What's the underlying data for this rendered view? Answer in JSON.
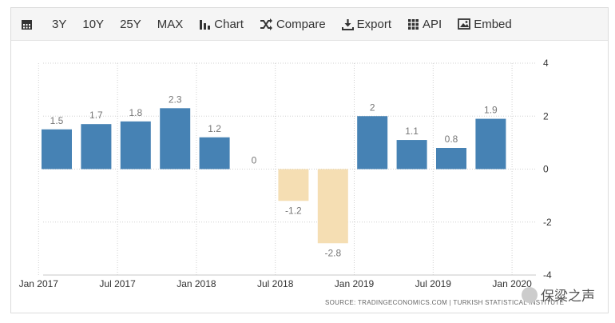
{
  "toolbar": {
    "items": [
      {
        "label": "",
        "icon": "calendar-icon"
      },
      {
        "label": "3Y"
      },
      {
        "label": "10Y"
      },
      {
        "label": "25Y"
      },
      {
        "label": "MAX"
      },
      {
        "label": "Chart",
        "icon": "bar-chart-icon"
      },
      {
        "label": "Compare",
        "icon": "shuffle-icon"
      },
      {
        "label": "Export",
        "icon": "download-icon"
      },
      {
        "label": "API",
        "icon": "grid-icon"
      },
      {
        "label": "Embed",
        "icon": "image-icon"
      }
    ]
  },
  "source_text": "SOURCE: TRADINGECONOMICS.COM  |  TURKISH STATISTICAL INSTITUTE",
  "watermark_text": "保粱之声",
  "colors": {
    "positive": "#4682b4",
    "negative": "#f5deb3",
    "grid": "#d0d0d0",
    "label": "#777777"
  },
  "chart_data": {
    "type": "bar",
    "categories": [
      "Q1 2017",
      "Q2 2017",
      "Q3 2017",
      "Q4 2017",
      "Q1 2018",
      "Q2 2018",
      "Q3 2018",
      "Q4 2018",
      "Q1 2019",
      "Q2 2019",
      "Q3 2019",
      "Q4 2019"
    ],
    "values": [
      1.5,
      1.7,
      1.8,
      2.3,
      1.2,
      0,
      -1.2,
      -2.8,
      2,
      1.1,
      0.8,
      1.9
    ],
    "value_labels": [
      "1.5",
      "1.7",
      "1.8",
      "2.3",
      "1.2",
      "0",
      "-1.2",
      "-2.8",
      "2",
      "1.1",
      "0.8",
      "1.9"
    ],
    "x_tick_labels": [
      "Jan 2017",
      "Jul 2017",
      "Jan 2018",
      "Jul 2018",
      "Jan 2019",
      "Jul 2019",
      "Jan 2020"
    ],
    "y_ticks": [
      4,
      2,
      0,
      -2,
      -4
    ],
    "ylim": [
      -4,
      4
    ],
    "title": "",
    "xlabel": "",
    "ylabel": ""
  }
}
